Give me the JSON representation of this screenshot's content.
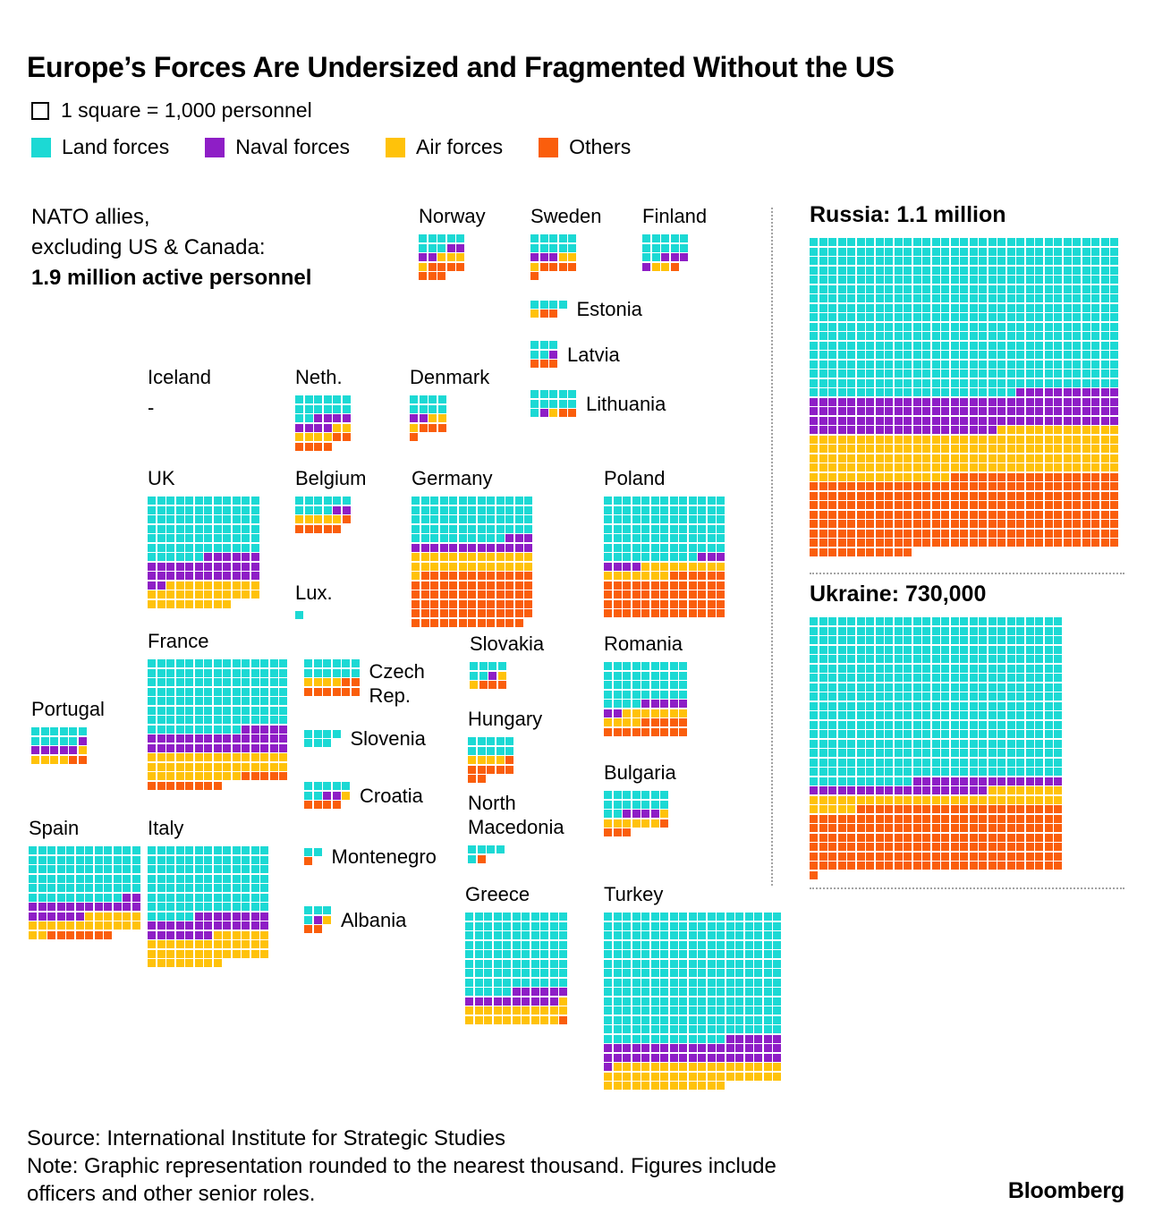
{
  "title": "Europe’s Forces Are Undersized and Fragmented Without the US",
  "legend": {
    "unit": "1 square = 1,000 personnel",
    "series": [
      {
        "name": "Land forces",
        "color": "#1CD9D4"
      },
      {
        "name": "Naval forces",
        "color": "#8E1EC6"
      },
      {
        "name": "Air forces",
        "color": "#FFC20A"
      },
      {
        "name": "Others",
        "color": "#FA5E0C"
      }
    ]
  },
  "callout": {
    "line1": "NATO allies,",
    "line2": "excluding US & Canada:",
    "line3": "1.9 million active personnel"
  },
  "chart_data": {
    "type": "waffle",
    "unit_per_square": 1000,
    "categories": [
      "Land forces",
      "Naval forces",
      "Air forces",
      "Others"
    ],
    "legend_position": "top",
    "nato_countries": [
      {
        "id": "norway",
        "name": "Norway",
        "values": {
          "land": 8,
          "naval": 4,
          "air": 4,
          "others": 7
        }
      },
      {
        "id": "sweden",
        "name": "Sweden",
        "values": {
          "land": 10,
          "naval": 3,
          "air": 3,
          "others": 5
        }
      },
      {
        "id": "finland",
        "name": "Finland",
        "values": {
          "land": 12,
          "naval": 4,
          "air": 2,
          "others": 1
        }
      },
      {
        "id": "estonia",
        "name": "Estonia",
        "values": {
          "land": 4,
          "naval": 0,
          "air": 1,
          "others": 2
        }
      },
      {
        "id": "latvia",
        "name": "Latvia",
        "values": {
          "land": 5,
          "naval": 1,
          "air": 0,
          "others": 3
        }
      },
      {
        "id": "lithuania",
        "name": "Lithuania",
        "values": {
          "land": 11,
          "naval": 1,
          "air": 1,
          "others": 2
        }
      },
      {
        "id": "iceland",
        "name": "Iceland",
        "placeholder": "-",
        "values": {
          "land": 0,
          "naval": 0,
          "air": 0,
          "others": 0
        }
      },
      {
        "id": "netherlands",
        "name": "Neth.",
        "values": {
          "land": 14,
          "naval": 8,
          "air": 6,
          "others": 6
        }
      },
      {
        "id": "denmark",
        "name": "Denmark",
        "values": {
          "land": 8,
          "naval": 2,
          "air": 3,
          "others": 4
        }
      },
      {
        "id": "uk",
        "name": "UK",
        "values": {
          "land": 78,
          "naval": 32,
          "air": 31,
          "others": 0
        }
      },
      {
        "id": "belgium",
        "name": "Belgium",
        "values": {
          "land": 10,
          "naval": 2,
          "air": 5,
          "others": 6
        }
      },
      {
        "id": "germany",
        "name": "Germany",
        "values": {
          "land": 62,
          "naval": 16,
          "air": 27,
          "others": 76
        }
      },
      {
        "id": "poland",
        "name": "Poland",
        "values": {
          "land": 88,
          "naval": 7,
          "air": 16,
          "others": 58
        }
      },
      {
        "id": "luxembourg",
        "name": "Lux.",
        "values": {
          "land": 1,
          "naval": 0,
          "air": 0,
          "others": 0
        }
      },
      {
        "id": "france",
        "name": "France",
        "values": {
          "land": 115,
          "naval": 35,
          "air": 40,
          "others": 13
        }
      },
      {
        "id": "czech",
        "name": "Czech Rep.",
        "values": {
          "land": 12,
          "naval": 0,
          "air": 4,
          "others": 8
        }
      },
      {
        "id": "slovakia",
        "name": "Slovakia",
        "values": {
          "land": 6,
          "naval": 1,
          "air": 2,
          "others": 3
        }
      },
      {
        "id": "romania",
        "name": "Romania",
        "values": {
          "land": 40,
          "naval": 7,
          "air": 11,
          "others": 14
        }
      },
      {
        "id": "portugal",
        "name": "Portugal",
        "values": {
          "land": 11,
          "naval": 6,
          "air": 5,
          "others": 2
        }
      },
      {
        "id": "slovenia",
        "name": "Slovenia",
        "values": {
          "land": 7,
          "naval": 0,
          "air": 0,
          "others": 0
        }
      },
      {
        "id": "hungary",
        "name": "Hungary",
        "values": {
          "land": 10,
          "naval": 0,
          "air": 4,
          "others": 8
        }
      },
      {
        "id": "croatia",
        "name": "Croatia",
        "values": {
          "land": 7,
          "naval": 2,
          "air": 1,
          "others": 4
        }
      },
      {
        "id": "bulgaria",
        "name": "Bulgaria",
        "values": {
          "land": 16,
          "naval": 4,
          "air": 7,
          "others": 4
        }
      },
      {
        "id": "montenegro",
        "name": "Montenegro",
        "values": {
          "land": 2,
          "naval": 0,
          "air": 0,
          "others": 1
        }
      },
      {
        "id": "north_macedonia",
        "name": "North Macedonia",
        "values": {
          "land": 5,
          "naval": 0,
          "air": 0,
          "others": 1
        }
      },
      {
        "id": "spain",
        "name": "Spain",
        "values": {
          "land": 70,
          "naval": 20,
          "air": 20,
          "others": 7
        }
      },
      {
        "id": "italy",
        "name": "Italy",
        "values": {
          "land": 96,
          "naval": 28,
          "air": 40,
          "others": 0
        }
      },
      {
        "id": "albania",
        "name": "Albania",
        "values": {
          "land": 4,
          "naval": 1,
          "air": 1,
          "others": 2
        }
      },
      {
        "id": "greece",
        "name": "Greece",
        "values": {
          "land": 93,
          "naval": 16,
          "air": 22,
          "others": 1
        }
      },
      {
        "id": "turkey",
        "name": "Turkey",
        "values": {
          "land": 260,
          "naval": 45,
          "air": 50,
          "others": 0
        }
      }
    ],
    "comparison": [
      {
        "id": "russia",
        "name": "Russia",
        "total_label": "1.1 million",
        "values": {
          "land": 550,
          "naval": 130,
          "air": 160,
          "others": 260
        }
      },
      {
        "id": "ukraine",
        "name": "Ukraine",
        "total_label": "730,000",
        "values": {
          "land": 470,
          "naval": 35,
          "air": 40,
          "others": 185
        }
      }
    ]
  },
  "footer": {
    "source": "Source: International Institute for Strategic Studies",
    "note": "Note: Graphic representation rounded to the nearest thousand. Figures include officers and other senior roles.",
    "brand": "Bloomberg"
  }
}
